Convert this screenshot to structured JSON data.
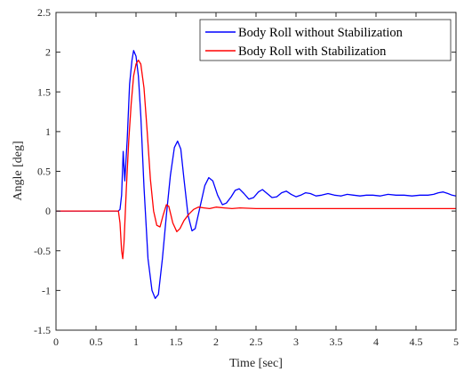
{
  "chart_data": {
    "type": "line",
    "title": "",
    "xlabel": "Time [sec]",
    "ylabel": "Angle [deg]",
    "xlim": [
      0,
      5
    ],
    "ylim": [
      -1.5,
      2.5
    ],
    "xticks": [
      0,
      0.5,
      1,
      1.5,
      2,
      2.5,
      3,
      3.5,
      4,
      4.5,
      5
    ],
    "yticks": [
      -1.5,
      -1,
      -0.5,
      0,
      0.5,
      1,
      1.5,
      2,
      2.5
    ],
    "xtick_labels": [
      "0",
      "0.5",
      "1",
      "1.5",
      "2",
      "2.5",
      "3",
      "3.5",
      "4",
      "4.5",
      "5"
    ],
    "ytick_labels": [
      "-1.5",
      "-1",
      "-0.5",
      "0",
      "0.5",
      "1",
      "1.5",
      "2",
      "2.5"
    ],
    "grid": false,
    "legend_position": "top-right",
    "series": [
      {
        "name": "Body Roll without Stabilization",
        "color": "#0000ff",
        "points": [
          [
            0,
            0
          ],
          [
            0.78,
            0
          ],
          [
            0.8,
            0.02
          ],
          [
            0.82,
            0.2
          ],
          [
            0.84,
            0.75
          ],
          [
            0.86,
            0.38
          ],
          [
            0.89,
            0.9
          ],
          [
            0.92,
            1.6
          ],
          [
            0.95,
            1.9
          ],
          [
            0.97,
            2.02
          ],
          [
            1.0,
            1.95
          ],
          [
            1.03,
            1.7
          ],
          [
            1.06,
            1.2
          ],
          [
            1.1,
            0.3
          ],
          [
            1.15,
            -0.6
          ],
          [
            1.2,
            -1.0
          ],
          [
            1.24,
            -1.1
          ],
          [
            1.28,
            -1.05
          ],
          [
            1.33,
            -0.6
          ],
          [
            1.38,
            -0.05
          ],
          [
            1.43,
            0.45
          ],
          [
            1.48,
            0.8
          ],
          [
            1.52,
            0.88
          ],
          [
            1.56,
            0.78
          ],
          [
            1.6,
            0.4
          ],
          [
            1.65,
            -0.05
          ],
          [
            1.7,
            -0.25
          ],
          [
            1.74,
            -0.22
          ],
          [
            1.8,
            0.05
          ],
          [
            1.86,
            0.32
          ],
          [
            1.91,
            0.42
          ],
          [
            1.96,
            0.38
          ],
          [
            2.02,
            0.2
          ],
          [
            2.08,
            0.08
          ],
          [
            2.13,
            0.1
          ],
          [
            2.19,
            0.18
          ],
          [
            2.24,
            0.26
          ],
          [
            2.29,
            0.28
          ],
          [
            2.35,
            0.22
          ],
          [
            2.41,
            0.15
          ],
          [
            2.47,
            0.17
          ],
          [
            2.53,
            0.24
          ],
          [
            2.58,
            0.27
          ],
          [
            2.64,
            0.22
          ],
          [
            2.7,
            0.17
          ],
          [
            2.76,
            0.18
          ],
          [
            2.82,
            0.23
          ],
          [
            2.88,
            0.25
          ],
          [
            2.94,
            0.21
          ],
          [
            3.0,
            0.18
          ],
          [
            3.06,
            0.2
          ],
          [
            3.12,
            0.23
          ],
          [
            3.18,
            0.22
          ],
          [
            3.25,
            0.19
          ],
          [
            3.32,
            0.2
          ],
          [
            3.4,
            0.22
          ],
          [
            3.48,
            0.2
          ],
          [
            3.56,
            0.19
          ],
          [
            3.64,
            0.21
          ],
          [
            3.72,
            0.2
          ],
          [
            3.8,
            0.19
          ],
          [
            3.88,
            0.2
          ],
          [
            3.96,
            0.2
          ],
          [
            4.05,
            0.19
          ],
          [
            4.15,
            0.21
          ],
          [
            4.25,
            0.2
          ],
          [
            4.35,
            0.2
          ],
          [
            4.45,
            0.19
          ],
          [
            4.55,
            0.2
          ],
          [
            4.65,
            0.2
          ],
          [
            4.72,
            0.21
          ],
          [
            4.78,
            0.23
          ],
          [
            4.84,
            0.24
          ],
          [
            4.9,
            0.22
          ],
          [
            4.95,
            0.2
          ],
          [
            5.0,
            0.19
          ]
        ]
      },
      {
        "name": "Body Roll with Stabilization",
        "color": "#ff0000",
        "points": [
          [
            0,
            0
          ],
          [
            0.78,
            0
          ],
          [
            0.8,
            -0.15
          ],
          [
            0.82,
            -0.5
          ],
          [
            0.835,
            -0.6
          ],
          [
            0.85,
            -0.4
          ],
          [
            0.88,
            0.3
          ],
          [
            0.91,
            0.9
          ],
          [
            0.94,
            1.35
          ],
          [
            0.97,
            1.7
          ],
          [
            1.0,
            1.85
          ],
          [
            1.03,
            1.9
          ],
          [
            1.06,
            1.85
          ],
          [
            1.1,
            1.55
          ],
          [
            1.14,
            1.0
          ],
          [
            1.18,
            0.4
          ],
          [
            1.22,
            0.0
          ],
          [
            1.26,
            -0.18
          ],
          [
            1.3,
            -0.2
          ],
          [
            1.34,
            -0.05
          ],
          [
            1.38,
            0.08
          ],
          [
            1.41,
            0.06
          ],
          [
            1.46,
            -0.15
          ],
          [
            1.51,
            -0.26
          ],
          [
            1.55,
            -0.22
          ],
          [
            1.6,
            -0.12
          ],
          [
            1.66,
            -0.04
          ],
          [
            1.72,
            0.02
          ],
          [
            1.78,
            0.05
          ],
          [
            1.85,
            0.04
          ],
          [
            1.92,
            0.03
          ],
          [
            2.0,
            0.05
          ],
          [
            2.1,
            0.04
          ],
          [
            2.2,
            0.03
          ],
          [
            2.3,
            0.04
          ],
          [
            2.5,
            0.03
          ],
          [
            2.7,
            0.03
          ],
          [
            3.0,
            0.03
          ],
          [
            3.5,
            0.03
          ],
          [
            4.0,
            0.03
          ],
          [
            4.5,
            0.03
          ],
          [
            5.0,
            0.03
          ]
        ]
      }
    ]
  }
}
